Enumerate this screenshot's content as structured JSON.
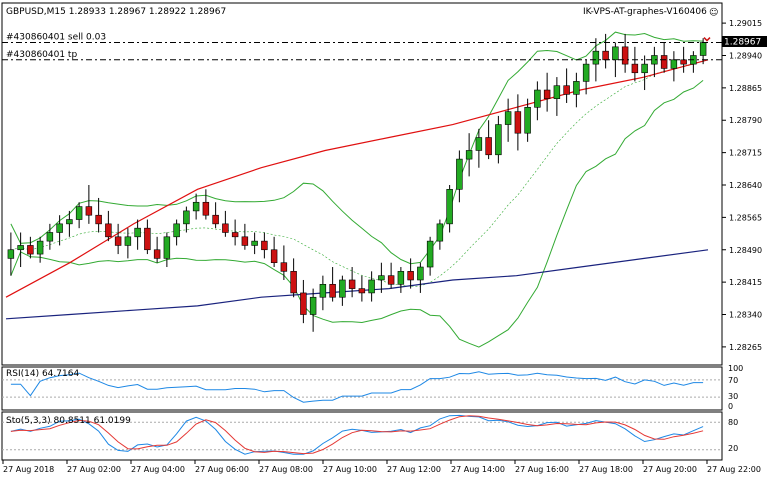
{
  "header": {
    "symbol_line": "GBPUSD,M15  1.28933 1.28967 1.28922 1.28967",
    "ea_label": "IK-VPS-AT-graphes-V160406",
    "smiley": "☺"
  },
  "orders": [
    {
      "label": "#430860401 sell 0.03",
      "price": 1.2897
    },
    {
      "label": "#430860401 tp",
      "price": 1.2893
    }
  ],
  "price_marker": "1.28967",
  "colors": {
    "bull": "#22aa22",
    "bear": "#cc1111",
    "ma_red": "#e01010",
    "ma_blue": "#1a237e",
    "bands": "#33aa33",
    "rsi": "#1e88e5",
    "stoch_main": "#1e88e5",
    "stoch_signal": "#e53935",
    "marker": "#000000"
  },
  "rsi": {
    "label": "RSI(14) 64.7164",
    "levels": [
      "100",
      "70",
      "30",
      "0"
    ]
  },
  "stoch": {
    "label": "Sto(5,3,3) 80.8511 61.0199",
    "levels": [
      "80",
      "20"
    ]
  },
  "chart_data": {
    "type": "candlestick",
    "symbol": "GBPUSD",
    "timeframe": "M15",
    "ylim": [
      1.2823,
      1.2905
    ],
    "y_ticks": [
      "1.29015",
      "1.28940",
      "1.28865",
      "1.28790",
      "1.28715",
      "1.28640",
      "1.28565",
      "1.28490",
      "1.28415",
      "1.28340",
      "1.28265"
    ],
    "x_ticks": [
      "27 Aug 2018",
      "27 Aug 02:00",
      "27 Aug 04:00",
      "27 Aug 06:00",
      "27 Aug 08:00",
      "27 Aug 10:00",
      "27 Aug 12:00",
      "27 Aug 14:00",
      "27 Aug 16:00",
      "27 Aug 18:00",
      "27 Aug 20:00",
      "27 Aug 22:00"
    ],
    "candles": [
      [
        1.2847,
        1.2853,
        1.2843,
        1.2849
      ],
      [
        1.2849,
        1.2853,
        1.2845,
        1.285
      ],
      [
        1.285,
        1.2852,
        1.2847,
        1.2848
      ],
      [
        1.2848,
        1.2852,
        1.2846,
        1.2851
      ],
      [
        1.2851,
        1.2855,
        1.2849,
        1.2853
      ],
      [
        1.2853,
        1.2857,
        1.285,
        1.2855
      ],
      [
        1.2855,
        1.2858,
        1.2852,
        1.2856
      ],
      [
        1.2856,
        1.286,
        1.2854,
        1.2859
      ],
      [
        1.2859,
        1.2864,
        1.2855,
        1.2857
      ],
      [
        1.2857,
        1.2861,
        1.2853,
        1.2855
      ],
      [
        1.2855,
        1.2858,
        1.2851,
        1.2852
      ],
      [
        1.2852,
        1.2855,
        1.2848,
        1.285
      ],
      [
        1.285,
        1.2854,
        1.2847,
        1.2852
      ],
      [
        1.2852,
        1.2856,
        1.2849,
        1.2854
      ],
      [
        1.2854,
        1.2856,
        1.2848,
        1.2849
      ],
      [
        1.2849,
        1.2852,
        1.2846,
        1.2847
      ],
      [
        1.2847,
        1.2853,
        1.2845,
        1.2852
      ],
      [
        1.2852,
        1.2856,
        1.285,
        1.2855
      ],
      [
        1.2855,
        1.2859,
        1.2853,
        1.2858
      ],
      [
        1.2858,
        1.2862,
        1.2856,
        1.286
      ],
      [
        1.286,
        1.2863,
        1.2856,
        1.2857
      ],
      [
        1.2857,
        1.286,
        1.2854,
        1.2855
      ],
      [
        1.2855,
        1.2858,
        1.2852,
        1.2853
      ],
      [
        1.2853,
        1.2856,
        1.285,
        1.2852
      ],
      [
        1.2852,
        1.2855,
        1.2849,
        1.285
      ],
      [
        1.285,
        1.2853,
        1.2848,
        1.2851
      ],
      [
        1.2851,
        1.2853,
        1.2847,
        1.2849
      ],
      [
        1.2849,
        1.2852,
        1.2845,
        1.2846
      ],
      [
        1.2846,
        1.285,
        1.2842,
        1.2844
      ],
      [
        1.2844,
        1.2847,
        1.2838,
        1.2839
      ],
      [
        1.2839,
        1.2842,
        1.2832,
        1.2834
      ],
      [
        1.2834,
        1.284,
        1.283,
        1.2838
      ],
      [
        1.2838,
        1.2843,
        1.2835,
        1.2841
      ],
      [
        1.2841,
        1.2845,
        1.2837,
        1.2838
      ],
      [
        1.2838,
        1.2843,
        1.2836,
        1.2842
      ],
      [
        1.2842,
        1.2845,
        1.2838,
        1.284
      ],
      [
        1.284,
        1.2843,
        1.2837,
        1.2839
      ],
      [
        1.2839,
        1.2844,
        1.2837,
        1.2842
      ],
      [
        1.2842,
        1.2846,
        1.2839,
        1.2843
      ],
      [
        1.2843,
        1.2846,
        1.284,
        1.2841
      ],
      [
        1.2841,
        1.2845,
        1.2839,
        1.2844
      ],
      [
        1.2844,
        1.2847,
        1.284,
        1.2842
      ],
      [
        1.2842,
        1.2846,
        1.2839,
        1.2845
      ],
      [
        1.2845,
        1.2852,
        1.2843,
        1.2851
      ],
      [
        1.2851,
        1.2856,
        1.2849,
        1.2855
      ],
      [
        1.2855,
        1.2864,
        1.2853,
        1.2863
      ],
      [
        1.2863,
        1.2872,
        1.286,
        1.287
      ],
      [
        1.287,
        1.2876,
        1.2866,
        1.2872
      ],
      [
        1.2872,
        1.2877,
        1.2868,
        1.2875
      ],
      [
        1.2875,
        1.2879,
        1.287,
        1.2871
      ],
      [
        1.2871,
        1.288,
        1.2869,
        1.2878
      ],
      [
        1.2878,
        1.2884,
        1.2874,
        1.2881
      ],
      [
        1.2881,
        1.2885,
        1.2872,
        1.2876
      ],
      [
        1.2876,
        1.2884,
        1.2874,
        1.2882
      ],
      [
        1.2882,
        1.2888,
        1.2879,
        1.2886
      ],
      [
        1.2886,
        1.289,
        1.2881,
        1.2884
      ],
      [
        1.2884,
        1.2889,
        1.288,
        1.2887
      ],
      [
        1.2887,
        1.2891,
        1.2883,
        1.2885
      ],
      [
        1.2885,
        1.289,
        1.2882,
        1.2888
      ],
      [
        1.2888,
        1.2893,
        1.2885,
        1.2892
      ],
      [
        1.2892,
        1.2898,
        1.2888,
        1.2895
      ],
      [
        1.2895,
        1.2899,
        1.2891,
        1.2893
      ],
      [
        1.2893,
        1.2897,
        1.2889,
        1.2896
      ],
      [
        1.2896,
        1.2899,
        1.289,
        1.2892
      ],
      [
        1.2892,
        1.2896,
        1.2888,
        1.289
      ],
      [
        1.289,
        1.2894,
        1.2886,
        1.2892
      ],
      [
        1.2892,
        1.2896,
        1.2889,
        1.2894
      ],
      [
        1.2894,
        1.2897,
        1.289,
        1.2891
      ],
      [
        1.2891,
        1.2895,
        1.2888,
        1.2893
      ],
      [
        1.2893,
        1.2896,
        1.289,
        1.2892
      ],
      [
        1.2892,
        1.2895,
        1.289,
        1.2894
      ],
      [
        1.2894,
        1.2898,
        1.2892,
        1.2897
      ]
    ],
    "series": [
      {
        "values": [
          1.2838,
          1.2846,
          1.2855,
          1.2863,
          1.2868,
          1.2872,
          1.2875,
          1.2878,
          1.2882,
          1.2886,
          1.2889,
          1.2893
        ]
      },
      {
        "values": [
          1.2833,
          1.2834,
          1.2835,
          1.2836,
          1.2838,
          1.2839,
          1.284,
          1.2842,
          1.2843,
          1.2845,
          1.2847,
          1.2849
        ]
      }
    ]
  }
}
